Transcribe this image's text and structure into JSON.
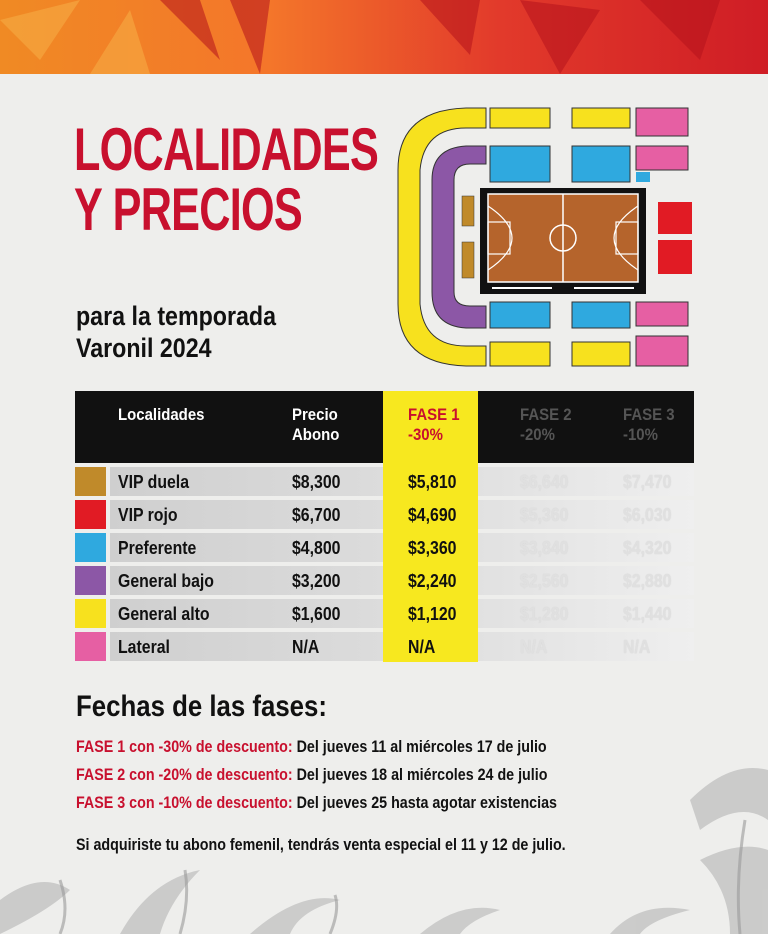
{
  "title": {
    "line1": "LOCALIDADES",
    "line2": "Y PRECIOS",
    "subtitle_line1": "para la temporada",
    "subtitle_line2": "Varonil 2024"
  },
  "colors": {
    "accent_red": "#c8102e",
    "fase1_yellow": "#f7e81f",
    "vip_duela": "#c08a2a",
    "vip_rojo": "#e11b24",
    "preferente": "#2fa9df",
    "general_bajo": "#8c57a6",
    "general_alto": "#f7e11e",
    "lateral": "#e65fa3"
  },
  "table": {
    "headers": {
      "localidades": "Localidades",
      "precio_abono": "Precio\nAbono",
      "fase1": "FASE 1\n-30%",
      "fase2": "FASE 2\n-20%",
      "fase3": "FASE 3\n-10%"
    },
    "rows": [
      {
        "name": "VIP duela",
        "abono": "$8,300",
        "f1": "$5,810",
        "f2": "$6,640",
        "f3": "$7,470",
        "color": "#c08a2a"
      },
      {
        "name": "VIP rojo",
        "abono": "$6,700",
        "f1": "$4,690",
        "f2": "$5,360",
        "f3": "$6,030",
        "color": "#e11b24"
      },
      {
        "name": "Preferente",
        "abono": "$4,800",
        "f1": "$3,360",
        "f2": "$3,840",
        "f3": "$4,320",
        "color": "#2fa9df"
      },
      {
        "name": "General bajo",
        "abono": "$3,200",
        "f1": "$2,240",
        "f2": "$2,560",
        "f3": "$2,880",
        "color": "#8c57a6"
      },
      {
        "name": "General alto",
        "abono": "$1,600",
        "f1": "$1,120",
        "f2": "$1,280",
        "f3": "$1,440",
        "color": "#f7e11e"
      },
      {
        "name": "Lateral",
        "abono": "N/A",
        "f1": "N/A",
        "f2": "N/A",
        "f3": "N/A",
        "color": "#e65fa3"
      }
    ]
  },
  "fechas": {
    "title": "Fechas de las fases:",
    "lines": [
      {
        "label": "FASE 1 con -30% de descuento:",
        "text": "Del jueves 11 al miércoles 17 de julio"
      },
      {
        "label": "FASE 2 con -20% de descuento:",
        "text": "Del jueves 18 al miércoles 24 de julio"
      },
      {
        "label": "FASE 3 con -10%  de descuento:",
        "text": "Del jueves 25 hasta agotar existencias"
      }
    ],
    "note": "Si adquiriste tu abono femenil, tendrás venta especial el 11 y 12 de julio."
  },
  "map": {
    "accessibility_icon": "wheelchair-icon"
  }
}
